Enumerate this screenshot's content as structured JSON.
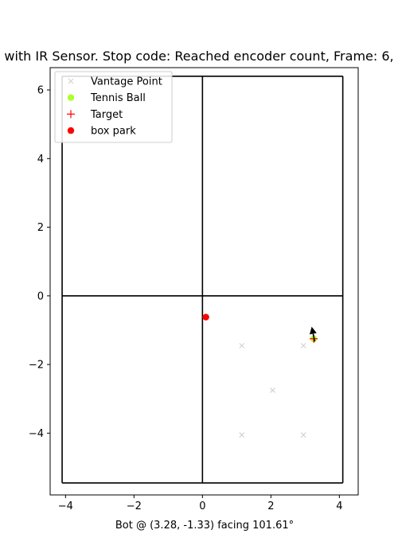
{
  "chart_data": {
    "type": "scatter",
    "title": "with IR Sensor. Stop code: Reached encoder count, Frame: 6,",
    "xlabel": "Bot @ (3.28, -1.33) facing 101.61°",
    "ylabel": "",
    "xlim": [
      -4.45,
      4.55
    ],
    "ylim": [
      -5.8,
      6.65
    ],
    "xticks": [
      -4,
      -2,
      0,
      2,
      4
    ],
    "yticks": [
      -4,
      -2,
      0,
      2,
      4,
      6
    ],
    "grid": false,
    "legend_position": "top-left",
    "series": [
      {
        "name": "Vantage Point",
        "marker": "x",
        "color": "#d3d3d3",
        "points": [
          [
            1.15,
            -1.45
          ],
          [
            2.95,
            -1.45
          ],
          [
            2.05,
            -2.75
          ],
          [
            1.15,
            -4.05
          ],
          [
            2.95,
            -4.05
          ]
        ]
      },
      {
        "name": "Tennis Ball",
        "marker": "o",
        "color": "#adff2f",
        "points": [
          [
            3.25,
            -1.25
          ]
        ]
      },
      {
        "name": "Target",
        "marker": "+",
        "color": "#ff0000",
        "points": [
          [
            3.25,
            -1.25
          ]
        ]
      },
      {
        "name": "box park",
        "marker": "o",
        "color": "#ff0000",
        "points": [
          [
            0.1,
            -0.62
          ]
        ]
      }
    ],
    "field_lines": [
      [
        [
          -4.1,
          -5.45
        ],
        [
          4.1,
          -5.45
        ]
      ],
      [
        [
          4.1,
          -5.45
        ],
        [
          4.1,
          6.4
        ]
      ],
      [
        [
          4.1,
          6.4
        ],
        [
          -4.1,
          6.4
        ]
      ],
      [
        [
          -4.1,
          6.4
        ],
        [
          -4.1,
          -5.45
        ]
      ],
      [
        [
          0,
          -5.45
        ],
        [
          0,
          6.4
        ]
      ],
      [
        [
          -4.1,
          0
        ],
        [
          4.1,
          0
        ]
      ]
    ],
    "bot": {
      "x": 3.28,
      "y": -1.33,
      "heading_deg": 101.61,
      "color": "#000000"
    }
  }
}
